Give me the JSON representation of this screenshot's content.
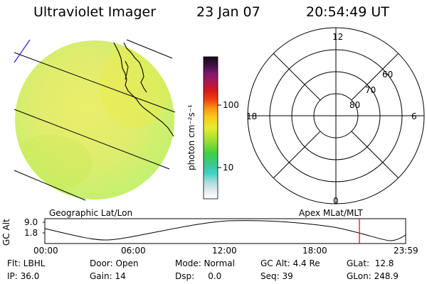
{
  "header": {
    "instrument": "Ultraviolet Imager",
    "date": "23 Jan 07",
    "time": "20:54:49 UT"
  },
  "colorbar": {
    "unit_label": "photon cm⁻²s⁻¹",
    "tick_100": "100",
    "tick_10": "10"
  },
  "panels": {
    "left_label": "Geographic Lat/Lon",
    "right_label": "Apex MLat/MLT"
  },
  "polar": {
    "mlt_top": "12",
    "mlt_left": "18",
    "mlt_right": "6",
    "mlt_bottom": "0",
    "lat_60": "60",
    "lat_70": "70",
    "lat_80": "80"
  },
  "altitude_plot": {
    "ylabel": "GC Alt",
    "y_max": "9.0",
    "y_min": "1.8",
    "x_ticks": [
      "00:00",
      "06:00",
      "12:00",
      "18:00",
      "23:59"
    ],
    "marker_color": "#e00000"
  },
  "info": {
    "flt": "Flt: LBHL",
    "ip": "IP: 36.0",
    "door": "Door: Open",
    "gain": "Gain: 14",
    "mode": "Mode: Normal",
    "dsp": "Dsp:     0.0",
    "gcalt": "GC Alt: 4.4 Re",
    "seq": "Seq: 39",
    "glat": "GLat:  12.8",
    "glon": "GLon: 248.9"
  }
}
